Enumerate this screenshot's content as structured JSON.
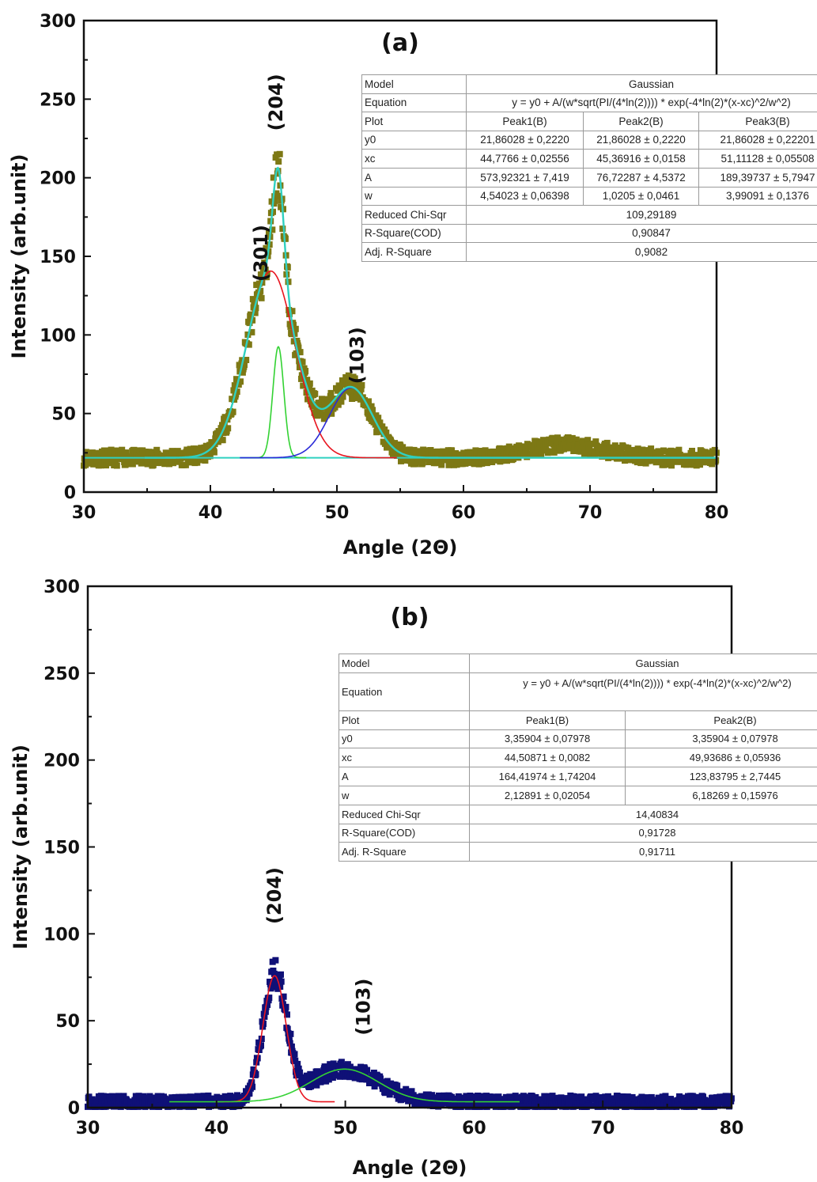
{
  "chart_data": [
    {
      "type": "scatter",
      "panel_label": "(a)",
      "xlabel": "Angle (2Θ)",
      "ylabel": "Intensity (arb.unit)",
      "xlim": [
        30,
        80
      ],
      "ylim": [
        0,
        300
      ],
      "x_ticks": [
        30,
        40,
        50,
        60,
        70,
        80
      ],
      "y_ticks": [
        0,
        50,
        100,
        150,
        200,
        250,
        300
      ],
      "grid": false,
      "marker_color": "#7d7814",
      "baseline": 21.86,
      "peaks": [
        {
          "label": "(301)",
          "x": 44.7766,
          "A": 573.92321,
          "w": 4.54023,
          "color": "#e8141e"
        },
        {
          "label": "(204)",
          "x": 45.36916,
          "A": 76.72287,
          "w": 1.0205,
          "color": "#33d233"
        },
        {
          "label": "(103)",
          "x": 51.11128,
          "A": 189.39737,
          "w": 3.99091,
          "color": "#2a2ad8"
        }
      ],
      "fit_color": "#2fd0c0",
      "baseline_color": "#2fd0c0",
      "annotations": [
        {
          "text": "(301)",
          "x": 44.5,
          "y": 152
        },
        {
          "text": "(204)",
          "x": 45.7,
          "y": 248
        },
        {
          "text": "(103)",
          "x": 52.1,
          "y": 87
        }
      ],
      "fit_table": {
        "rows": [
          [
            "Model",
            "Gaussian"
          ],
          [
            "Equation",
            "y = y0 + A/(w*sqrt(PI/(4*ln(2)))) * exp(-4*ln(2)*(x-xc)^2/w^2)"
          ],
          [
            "Plot",
            "Peak1(B)",
            "Peak2(B)",
            "Peak3(B)"
          ],
          [
            "y0",
            "21,86028 ± 0,2220",
            "21,86028 ± 0,2220",
            "21,86028 ± 0,22201"
          ],
          [
            "xc",
            "44,7766 ± 0,02556",
            "45,36916 ± 0,0158",
            "51,11128 ± 0,05508"
          ],
          [
            "A",
            "573,92321 ± 7,419",
            "76,72287 ± 4,5372",
            "189,39737 ± 5,7947"
          ],
          [
            "w",
            "4,54023 ± 0,06398",
            "1,0205 ± 0,0461",
            "3,99091 ± 0,1376"
          ],
          [
            "Reduced Chi-Sqr",
            "109,29189"
          ],
          [
            "R-Square(COD)",
            "0,90847"
          ],
          [
            "Adj. R-Square",
            "0,9082"
          ]
        ]
      }
    },
    {
      "type": "scatter",
      "panel_label": "(b)",
      "xlabel": "Angle (2Θ)",
      "ylabel": "Intensity (arb.unit)",
      "xlim": [
        30,
        80
      ],
      "ylim": [
        0,
        300
      ],
      "x_ticks": [
        30,
        40,
        50,
        60,
        70,
        80
      ],
      "y_ticks": [
        0,
        50,
        100,
        150,
        200,
        250,
        300
      ],
      "grid": false,
      "marker_color": "#0f1077",
      "baseline": 3.36,
      "peaks": [
        {
          "label": "(204)",
          "x": 44.50871,
          "A": 164.41974,
          "w": 2.12891,
          "color": "#e8141e"
        },
        {
          "label": "(103)",
          "x": 49.93686,
          "A": 123.83795,
          "w": 6.18269,
          "color": "#33d233"
        }
      ],
      "annotations": [
        {
          "text": "(204)",
          "x": 45.0,
          "y": 122
        },
        {
          "text": "(103)",
          "x": 51.9,
          "y": 58
        }
      ],
      "fit_table": {
        "rows": [
          [
            "Model",
            "Gaussian"
          ],
          [
            "Equation",
            "y = y0 + A/(w*sqrt(PI/(4*ln(2)))) * exp(-4*ln(2)*(x-xc)^2/w^2)"
          ],
          [
            "Plot",
            "Peak1(B)",
            "Peak2(B)"
          ],
          [
            "y0",
            "3,35904 ± 0,07978",
            "3,35904 ± 0,07978"
          ],
          [
            "xc",
            "44,50871 ± 0,0082",
            "49,93686 ± 0,05936"
          ],
          [
            "A",
            "164,41974 ± 1,74204",
            "123,83795 ± 2,7445"
          ],
          [
            "w",
            "2,12891 ± 0,02054",
            "6,18269 ± 0,15976"
          ],
          [
            "Reduced Chi-Sqr",
            "14,40834"
          ],
          [
            "R-Square(COD)",
            "0,91728"
          ],
          [
            "Adj. R-Square",
            "0,91711"
          ]
        ]
      }
    }
  ]
}
